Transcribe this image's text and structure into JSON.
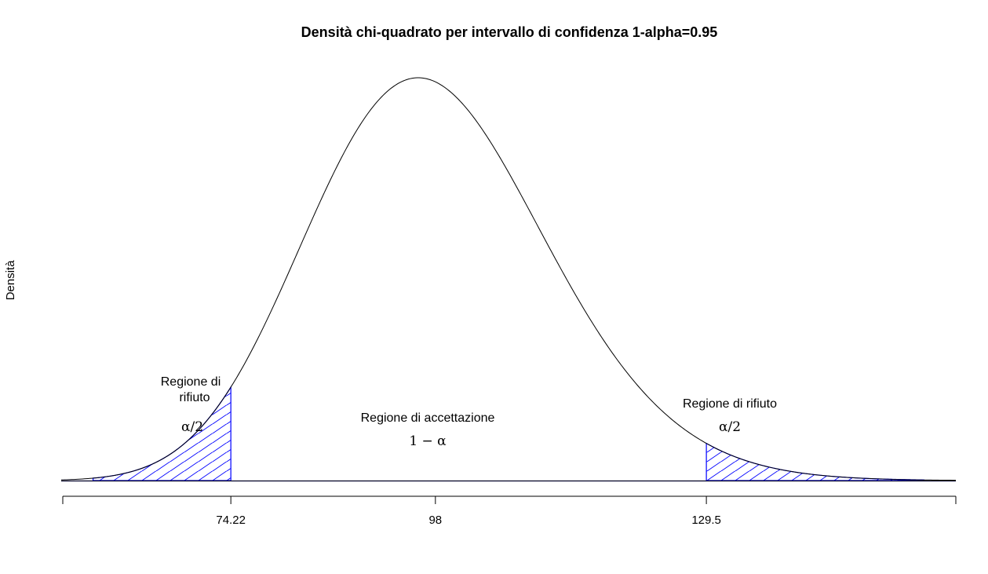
{
  "chart_data": {
    "type": "area",
    "title": "Densità chi-quadrato per intervallo di confidenza 1-alpha=0.95",
    "xlabel": "",
    "ylabel": "Densità",
    "distribution": {
      "name": "chi-square",
      "df": 98
    },
    "alpha": 0.05,
    "xlim": [
      54.5,
      158.5
    ],
    "x_ticks": [
      74.22,
      98,
      129.5
    ],
    "x_tick_labels": [
      "74.22",
      "98",
      "129.5"
    ],
    "critical_values": {
      "lower": 74.22,
      "upper": 129.5
    },
    "shaded_regions": [
      {
        "from": 58.2,
        "to": 74.22,
        "fill": "hatched",
        "color": "#0000ff"
      },
      {
        "from": 129.5,
        "to": 154.8,
        "fill": "hatched",
        "color": "#0000ff"
      }
    ],
    "curve_range": [
      54.5,
      158.5
    ],
    "annotations": {
      "left_region": [
        "Regione di",
        "rifiuto"
      ],
      "left_alpha": "α/2",
      "center_region": "Regione di accettazione",
      "center_value": "1 − α",
      "right_region": "Regione di rifiuto",
      "right_alpha": "α/2"
    },
    "grid": false,
    "legend": "none",
    "colors": {
      "curve": "#000000",
      "region": "#0000ff",
      "axis": "#000000"
    }
  }
}
